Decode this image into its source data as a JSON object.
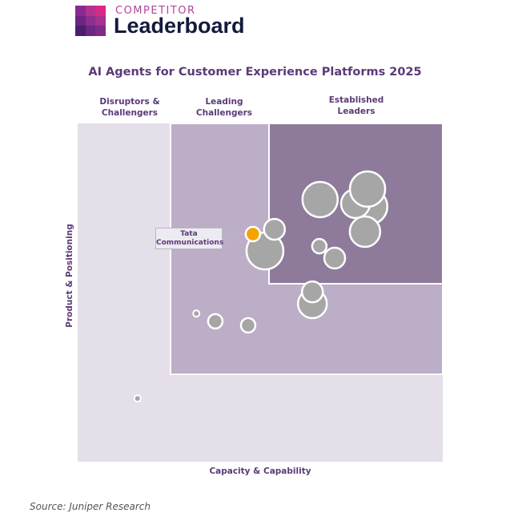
{
  "brand": {
    "top": "COMPETITOR",
    "main": "Leaderboard",
    "logo_colors": [
      "#8a2a8e",
      "#b0348f",
      "#d62a84",
      "#6b2585",
      "#8e2e8e",
      "#a5328c",
      "#4a1f6e",
      "#6a2784",
      "#7f2b88"
    ]
  },
  "chart_data": {
    "type": "scatter",
    "title": "AI Agents for Customer Experience Platforms 2025",
    "xlabel": "Capacity & Capability",
    "ylabel": "Product & Positioning",
    "xlim": [
      0,
      100
    ],
    "ylim": [
      0,
      100
    ],
    "grid": false,
    "quadrants": [
      {
        "name": "Disruptors & Challengers",
        "line1": "Disruptors &",
        "line2": "Challengers",
        "color": "#e4dfe8"
      },
      {
        "name": "Leading Challengers",
        "line1": "Leading",
        "line2": "Challengers",
        "color": "#bcaec7"
      },
      {
        "name": "Established Leaders",
        "line1": "Established",
        "line2": "Leaders",
        "color": "#8e7a9b"
      }
    ],
    "bubble_color": "#a6a6a6",
    "highlight_color": "#f5a300",
    "points": [
      {
        "x": 66.4,
        "y": 77.5,
        "size": 22
      },
      {
        "x": 80.0,
        "y": 75.4,
        "size": 22
      },
      {
        "x": 76.1,
        "y": 76.3,
        "size": 18
      },
      {
        "x": 78.7,
        "y": 68.0,
        "size": 19
      },
      {
        "x": 79.4,
        "y": 80.6,
        "size": 22
      },
      {
        "x": 51.3,
        "y": 62.3,
        "size": 23
      },
      {
        "x": 53.9,
        "y": 68.7,
        "size": 13
      },
      {
        "x": 66.2,
        "y": 63.7,
        "size": 9
      },
      {
        "x": 70.4,
        "y": 60.2,
        "size": 13
      },
      {
        "x": 64.3,
        "y": 46.7,
        "size": 18
      },
      {
        "x": 64.3,
        "y": 50.2,
        "size": 13
      },
      {
        "x": 32.5,
        "y": 43.8,
        "size": 4
      },
      {
        "x": 37.7,
        "y": 41.5,
        "size": 9
      },
      {
        "x": 46.7,
        "y": 40.3,
        "size": 9
      },
      {
        "x": 16.4,
        "y": 18.7,
        "size": 4
      },
      {
        "x": 48.0,
        "y": 67.3,
        "size": 9,
        "label": "Tata Communications",
        "label_line1": "Tata",
        "label_line2": "Communications",
        "highlight": true
      }
    ]
  },
  "source": "Source: Juniper Research"
}
